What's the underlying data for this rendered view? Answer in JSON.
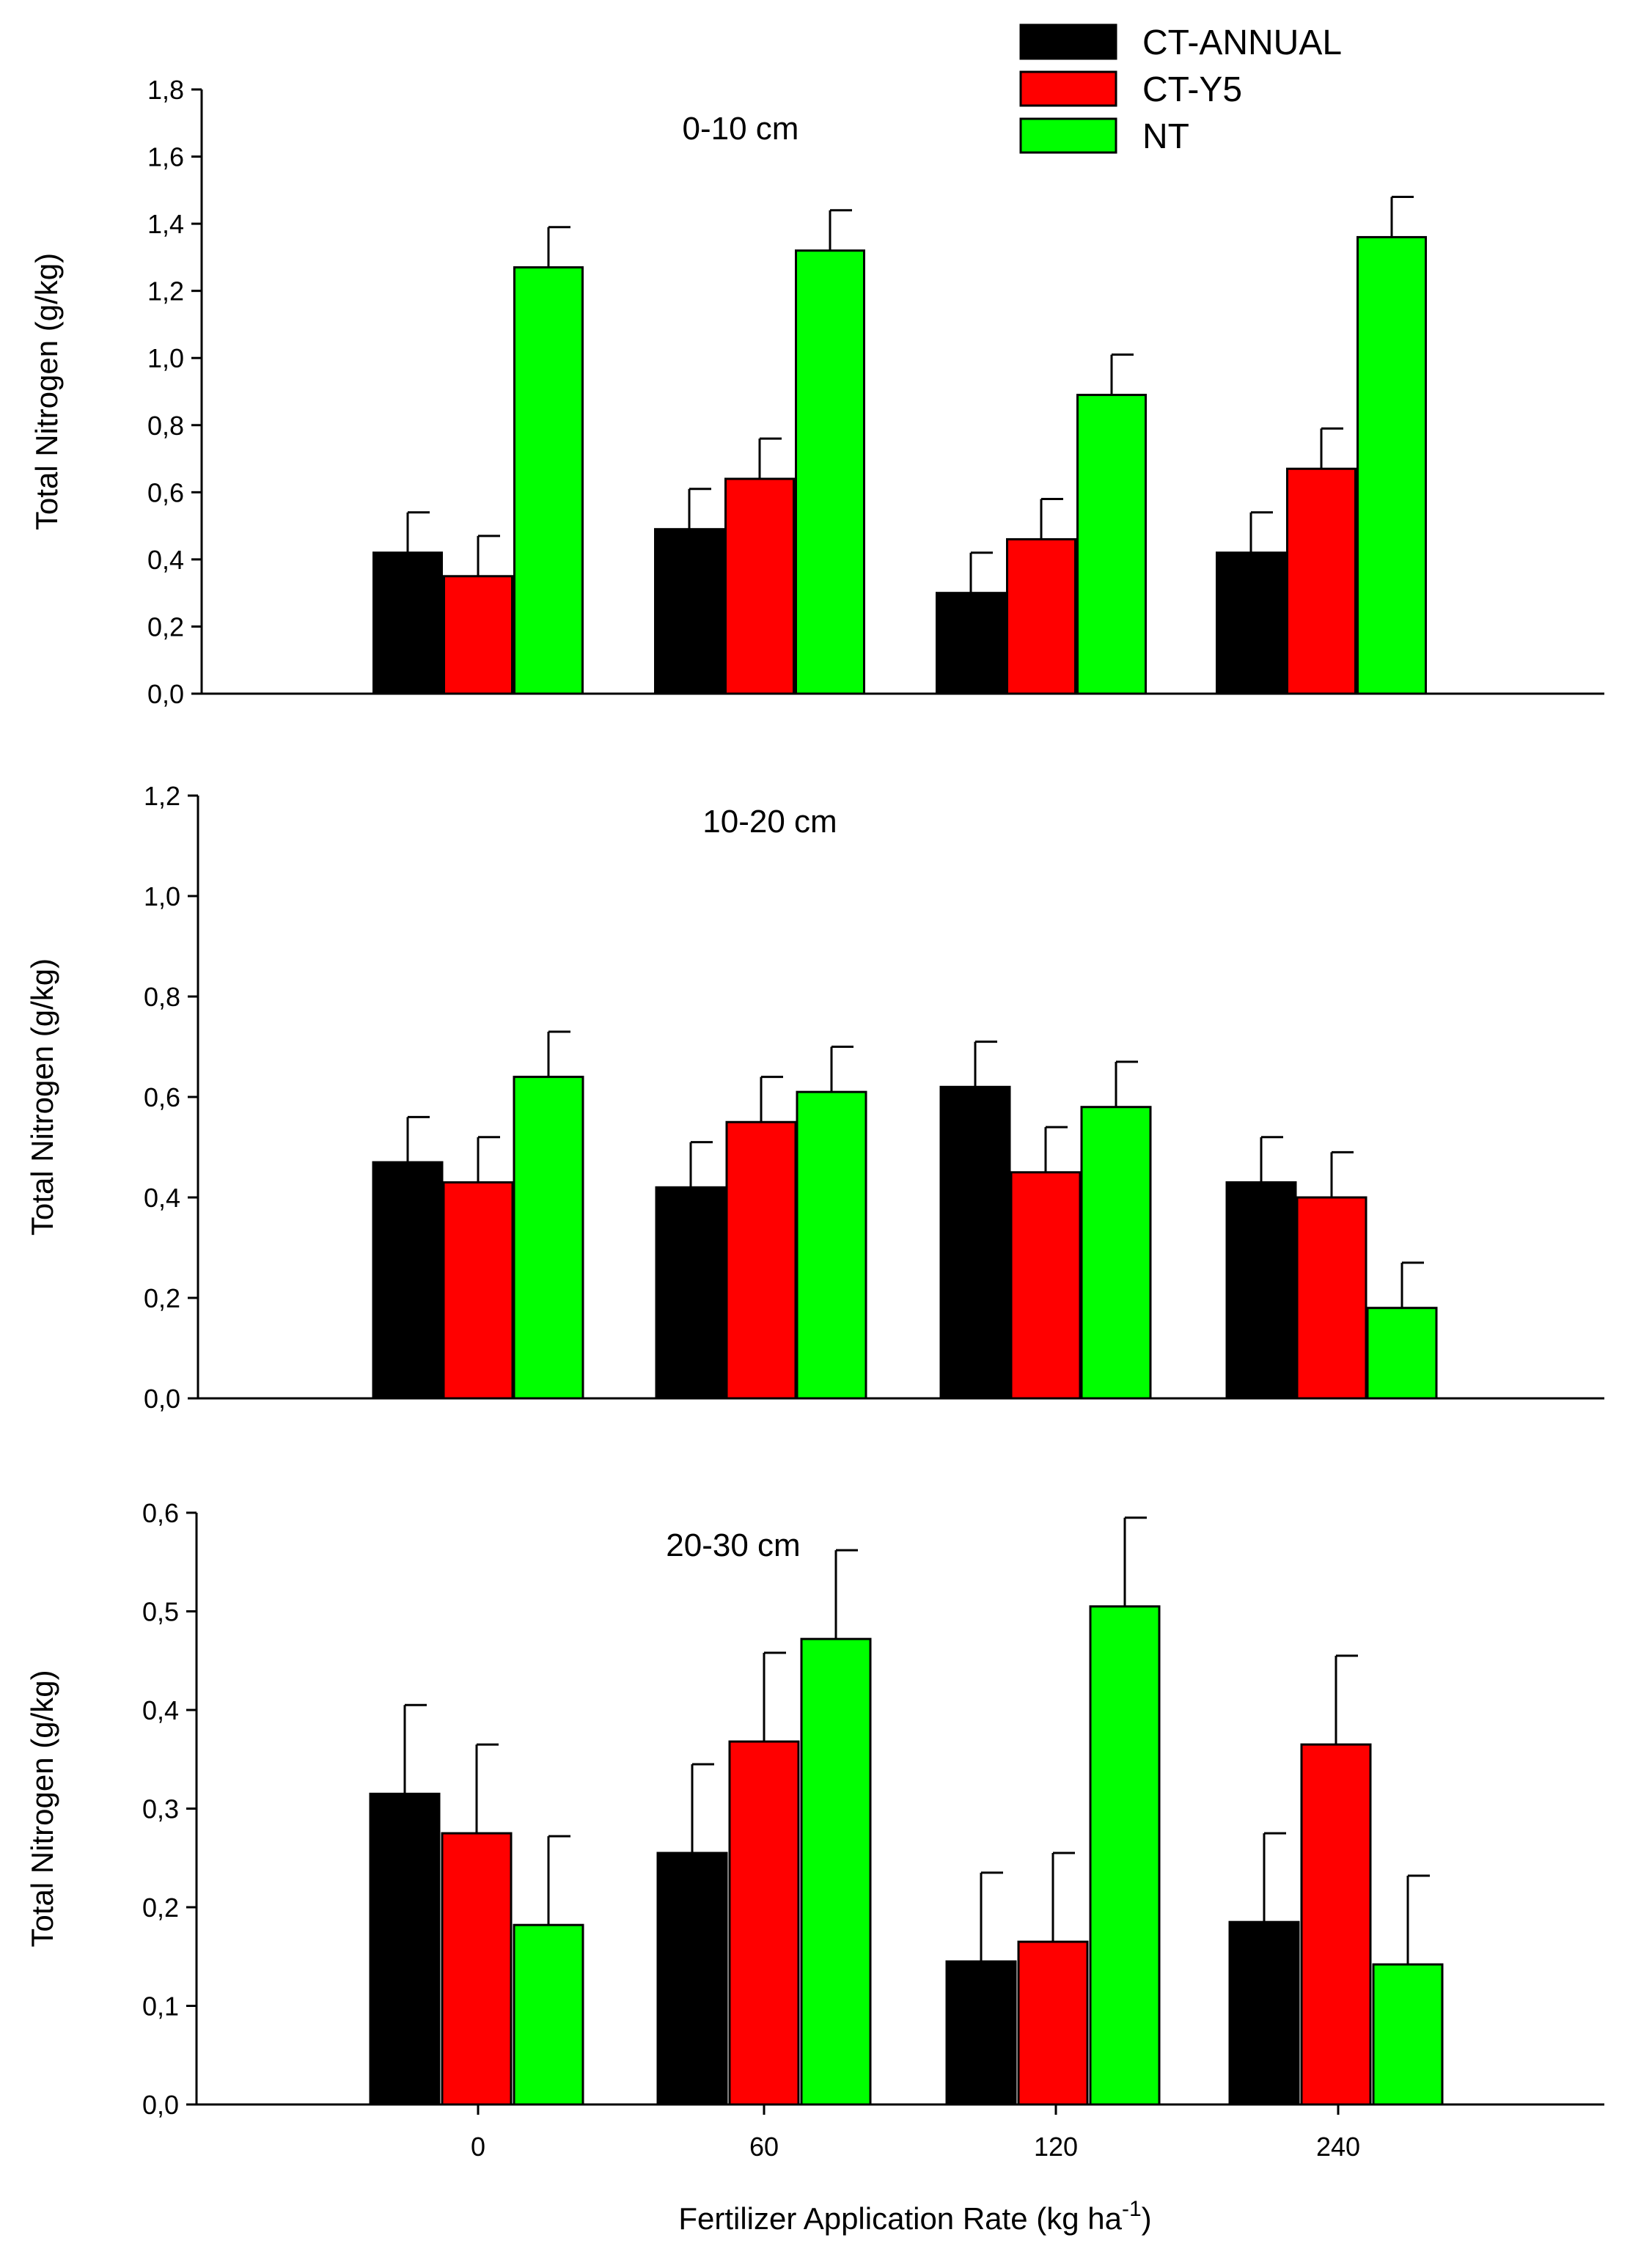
{
  "legend": [
    {
      "name": "CT-ANNUAL",
      "color": "#000000"
    },
    {
      "name": "CT-Y5",
      "color": "#ff0000"
    },
    {
      "name": "NT",
      "color": "#00ff00"
    }
  ],
  "xlabel_main": "Fertilizer Application Rate (kg ha",
  "xlabel_sup": "-1",
  "xlabel_end": ")",
  "chart_data": [
    {
      "type": "bar",
      "title": "0-10 cm",
      "ylabel": "Total Nitrogen (g/kg)",
      "ylim": [
        0,
        1.8
      ],
      "yticks": [
        "0,0",
        "0,2",
        "0,4",
        "0,6",
        "0,8",
        "1,0",
        "1,2",
        "1,4",
        "1,6",
        "1,8"
      ],
      "categories": [
        "0",
        "60",
        "120",
        "240"
      ],
      "show_xticks": false,
      "series": [
        {
          "name": "CT-ANNUAL",
          "values": [
            0.42,
            0.49,
            0.3,
            0.42
          ],
          "errors": [
            0.12,
            0.12,
            0.12,
            0.12
          ]
        },
        {
          "name": "CT-Y5",
          "values": [
            0.35,
            0.64,
            0.46,
            0.67
          ],
          "errors": [
            0.12,
            0.12,
            0.12,
            0.12
          ]
        },
        {
          "name": "NT",
          "values": [
            1.27,
            1.32,
            0.89,
            1.36
          ],
          "errors": [
            0.12,
            0.12,
            0.12,
            0.12
          ]
        }
      ]
    },
    {
      "type": "bar",
      "title": "10-20 cm",
      "ylabel": "Total Nitrogen (g/kg)",
      "ylim": [
        0,
        1.2
      ],
      "yticks": [
        "0,0",
        "0,2",
        "0,4",
        "0,6",
        "0,8",
        "1,0",
        "1,2"
      ],
      "categories": [
        "0",
        "60",
        "120",
        "240"
      ],
      "show_xticks": false,
      "series": [
        {
          "name": "CT-ANNUAL",
          "values": [
            0.47,
            0.42,
            0.62,
            0.43
          ],
          "errors": [
            0.09,
            0.09,
            0.09,
            0.09
          ]
        },
        {
          "name": "CT-Y5",
          "values": [
            0.43,
            0.55,
            0.45,
            0.4
          ],
          "errors": [
            0.09,
            0.09,
            0.09,
            0.09
          ]
        },
        {
          "name": "NT",
          "values": [
            0.64,
            0.61,
            0.58,
            0.18
          ],
          "errors": [
            0.09,
            0.09,
            0.09,
            0.09
          ]
        }
      ]
    },
    {
      "type": "bar",
      "title": "20-30 cm",
      "ylabel": "Total Nitrogen (g/kg)",
      "ylim": [
        0,
        0.6
      ],
      "yticks": [
        "0,0",
        "0,1",
        "0,2",
        "0,3",
        "0,4",
        "0,5",
        "0,6"
      ],
      "categories": [
        "0",
        "60",
        "120",
        "240"
      ],
      "show_xticks": true,
      "series": [
        {
          "name": "CT-ANNUAL",
          "values": [
            0.315,
            0.255,
            0.145,
            0.185
          ],
          "errors": [
            0.09,
            0.09,
            0.09,
            0.09
          ]
        },
        {
          "name": "CT-Y5",
          "values": [
            0.275,
            0.368,
            0.165,
            0.365
          ],
          "errors": [
            0.09,
            0.09,
            0.09,
            0.09
          ]
        },
        {
          "name": "NT",
          "values": [
            0.182,
            0.472,
            0.505,
            0.142
          ],
          "errors": [
            0.09,
            0.09,
            0.09,
            0.09
          ]
        }
      ]
    }
  ]
}
